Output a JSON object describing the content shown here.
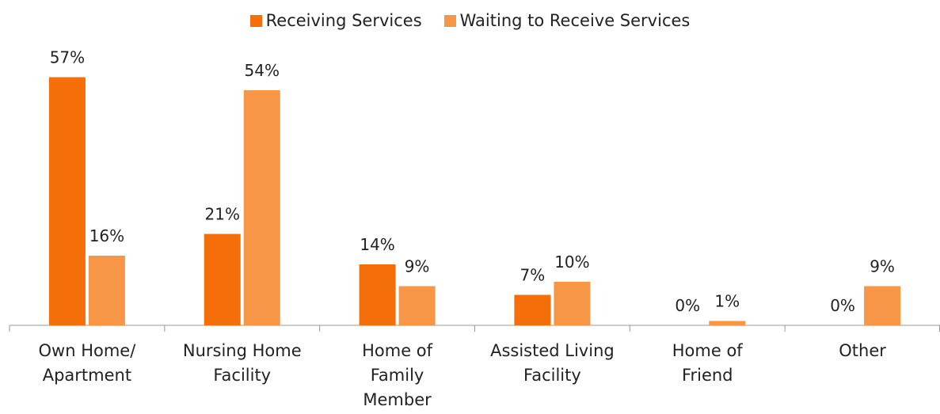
{
  "chart_data": {
    "type": "bar",
    "categories": [
      "Own Home/\nApartment",
      "Nursing Home\nFacility",
      "Home of\nFamily\nMember",
      "Assisted Living\nFacility",
      "Home of\nFriend",
      "Other"
    ],
    "series": [
      {
        "name": "Receiving Services",
        "color": "#f46f0a",
        "values": [
          57,
          21,
          14,
          7,
          0,
          0
        ],
        "value_labels": [
          "57%",
          "21%",
          "14%",
          "7%",
          "0%",
          "0%"
        ]
      },
      {
        "name": "Waiting to Receive Services",
        "color": "#f79646",
        "values": [
          16,
          54,
          9,
          10,
          1,
          9
        ],
        "value_labels": [
          "16%",
          "54%",
          "9%",
          "10%",
          "1%",
          "9%"
        ]
      }
    ],
    "ylim": [
      0,
      60
    ]
  }
}
